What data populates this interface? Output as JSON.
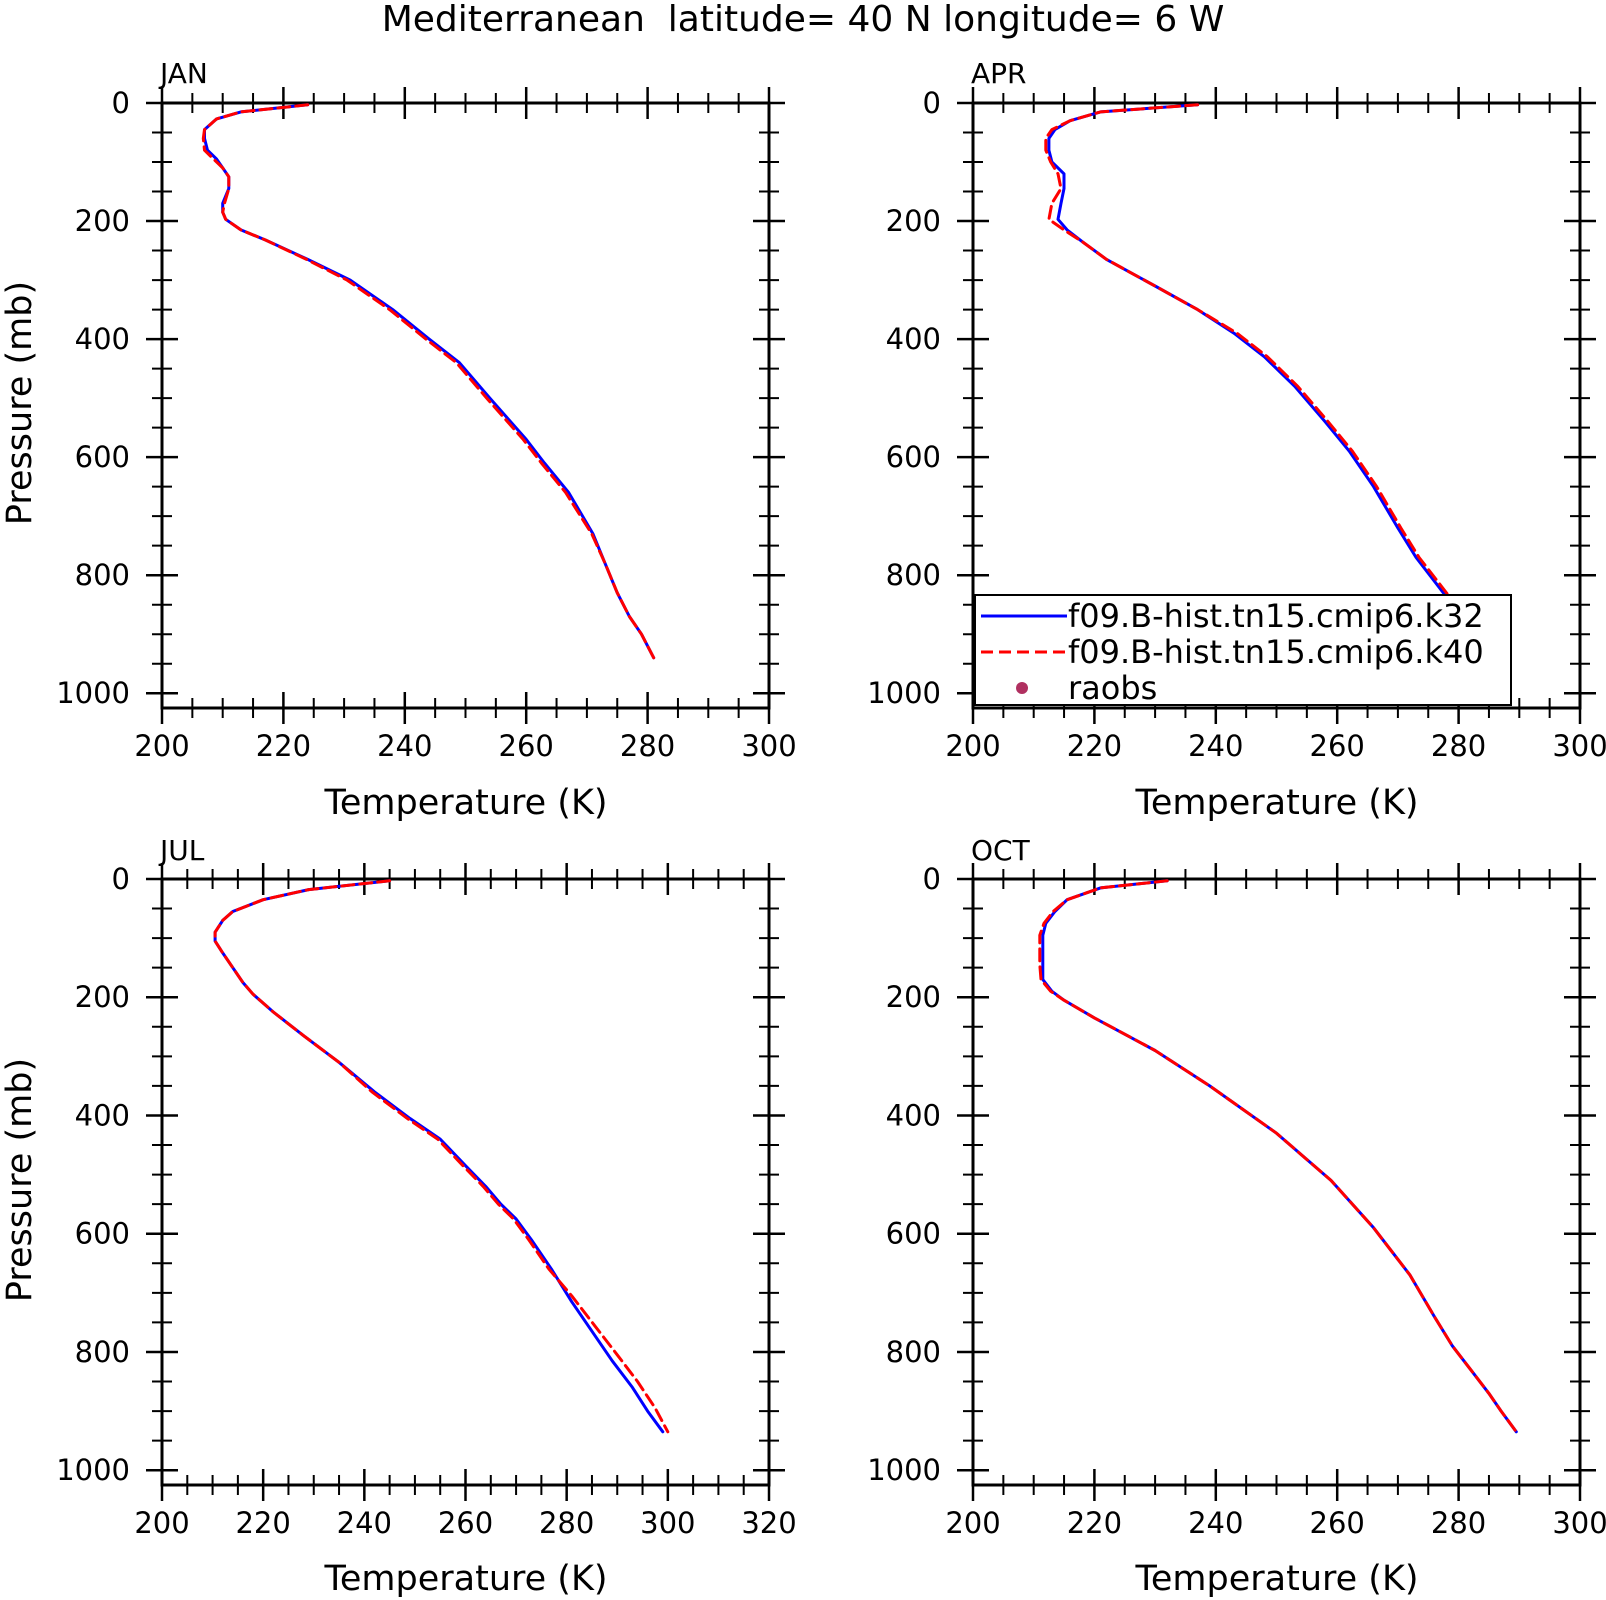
{
  "figure": {
    "title": "Mediterranean  latitude= 40 N longitude= 6 W"
  },
  "legend": {
    "entries": [
      {
        "label": "f09.B-hist.tn15.cmip6.k32",
        "color": "#0000ff",
        "style": "solid"
      },
      {
        "label": "f09.B-hist.tn15.cmip6.k40",
        "color": "#ff0000",
        "style": "dashed"
      },
      {
        "label": "raobs",
        "color": "#b03060",
        "style": "marker"
      }
    ]
  },
  "chart_data": [
    {
      "type": "line",
      "title": "JAN",
      "xlabel": "Temperature (K)",
      "ylabel": "Pressure (mb)",
      "xlim": [
        200,
        300
      ],
      "ylim": [
        1025,
        0
      ],
      "y_inverted": true,
      "xticks": [
        "200",
        "220",
        "240",
        "260",
        "280",
        "300"
      ],
      "yticks": [
        "0",
        "200",
        "400",
        "600",
        "800",
        "1000"
      ],
      "series": [
        {
          "name": "f09.B-hist.tn15.cmip6.k32",
          "color": "#0000ff",
          "dash": false,
          "points": [
            [
              224,
              3
            ],
            [
              213,
              15
            ],
            [
              209,
              27
            ],
            [
              207,
              45
            ],
            [
              207,
              60
            ],
            [
              207.5,
              80
            ],
            [
              209,
              95
            ],
            [
              210,
              110
            ],
            [
              211,
              125
            ],
            [
              211,
              145
            ],
            [
              210,
              170
            ],
            [
              210,
              185
            ],
            [
              210.5,
              197
            ],
            [
              213,
              215
            ],
            [
              217,
              232
            ],
            [
              224,
              265
            ],
            [
              231,
              300
            ],
            [
              238,
              350
            ],
            [
              244,
              400
            ],
            [
              249,
              440
            ],
            [
              254,
              500
            ],
            [
              260,
              570
            ],
            [
              263,
              610
            ],
            [
              267,
              660
            ],
            [
              271,
              730
            ],
            [
              273,
              780
            ],
            [
              275,
              830
            ],
            [
              277,
              870
            ],
            [
              279,
              900
            ],
            [
              281,
              940
            ]
          ]
        },
        {
          "name": "f09.B-hist.tn15.cmip6.k40",
          "color": "#ff0000",
          "dash": true,
          "points": [
            [
              224,
              3
            ],
            [
              213,
              15
            ],
            [
              209,
              27
            ],
            [
              207,
              45
            ],
            [
              206.8,
              60
            ],
            [
              207,
              80
            ],
            [
              208.5,
              95
            ],
            [
              210,
              110
            ],
            [
              211,
              125
            ],
            [
              211,
              145
            ],
            [
              210.3,
              170
            ],
            [
              210,
              185
            ],
            [
              210.5,
              197
            ],
            [
              213,
              215
            ],
            [
              217,
              232
            ],
            [
              223.8,
              265
            ],
            [
              230.5,
              300
            ],
            [
              237.5,
              350
            ],
            [
              243.5,
              400
            ],
            [
              248.5,
              440
            ],
            [
              253.5,
              500
            ],
            [
              259.5,
              570
            ],
            [
              262.5,
              610
            ],
            [
              266.5,
              660
            ],
            [
              270.8,
              730
            ],
            [
              273,
              780
            ],
            [
              275,
              830
            ],
            [
              277,
              870
            ],
            [
              279,
              900
            ],
            [
              281,
              940
            ]
          ]
        }
      ]
    },
    {
      "type": "line",
      "title": "APR",
      "xlabel": "Temperature (K)",
      "ylabel": "",
      "xlim": [
        200,
        300
      ],
      "ylim": [
        1025,
        0
      ],
      "y_inverted": true,
      "xticks": [
        "200",
        "220",
        "240",
        "260",
        "280",
        "300"
      ],
      "yticks": [
        "0",
        "200",
        "400",
        "600",
        "800",
        "1000"
      ],
      "series": [
        {
          "name": "f09.B-hist.tn15.cmip6.k32",
          "color": "#0000ff",
          "dash": false,
          "points": [
            [
              237,
              3
            ],
            [
              221,
              15
            ],
            [
              216,
              30
            ],
            [
              213.5,
              45
            ],
            [
              212.5,
              60
            ],
            [
              212.5,
              80
            ],
            [
              213,
              100
            ],
            [
              215,
              120
            ],
            [
              215,
              145
            ],
            [
              214.5,
              170
            ],
            [
              214,
              197
            ],
            [
              215.5,
              215
            ],
            [
              218,
              235
            ],
            [
              222,
              265
            ],
            [
              230,
              310
            ],
            [
              237,
              350
            ],
            [
              243,
              390
            ],
            [
              248,
              430
            ],
            [
              253,
              480
            ],
            [
              258,
              540
            ],
            [
              262,
              590
            ],
            [
              266,
              650
            ],
            [
              270,
              720
            ],
            [
              273,
              770
            ],
            [
              276,
              810
            ],
            [
              279,
              850
            ],
            [
              282,
              890
            ],
            [
              284,
              910
            ],
            [
              286,
              935
            ]
          ]
        },
        {
          "name": "f09.B-hist.tn15.cmip6.k40",
          "color": "#ff0000",
          "dash": true,
          "points": [
            [
              237,
              3
            ],
            [
              221,
              15
            ],
            [
              216,
              30
            ],
            [
              213,
              45
            ],
            [
              212,
              60
            ],
            [
              212,
              80
            ],
            [
              212.8,
              100
            ],
            [
              214,
              120
            ],
            [
              214.5,
              145
            ],
            [
              213,
              170
            ],
            [
              212.5,
              197
            ],
            [
              215,
              215
            ],
            [
              218,
              235
            ],
            [
              222,
              265
            ],
            [
              230,
              310
            ],
            [
              237,
              350
            ],
            [
              243.5,
              390
            ],
            [
              248.5,
              430
            ],
            [
              253.5,
              480
            ],
            [
              258.5,
              540
            ],
            [
              262.5,
              590
            ],
            [
              266.5,
              650
            ],
            [
              270.5,
              720
            ],
            [
              273.5,
              770
            ],
            [
              276.5,
              810
            ],
            [
              279.5,
              850
            ],
            [
              282,
              890
            ],
            [
              284.5,
              910
            ],
            [
              286.5,
              935
            ]
          ]
        }
      ]
    },
    {
      "type": "line",
      "title": "JUL",
      "xlabel": "Temperature (K)",
      "ylabel": "Pressure (mb)",
      "xlim": [
        200,
        320
      ],
      "ylim": [
        1025,
        0
      ],
      "y_inverted": true,
      "xticks": [
        "200",
        "220",
        "240",
        "260",
        "280",
        "300",
        "320"
      ],
      "yticks": [
        "0",
        "200",
        "400",
        "600",
        "800",
        "1000"
      ],
      "series": [
        {
          "name": "f09.B-hist.tn15.cmip6.k32",
          "color": "#0000ff",
          "dash": false,
          "points": [
            [
              245,
              3
            ],
            [
              229,
              18
            ],
            [
              220,
              35
            ],
            [
              214,
              55
            ],
            [
              212,
              70
            ],
            [
              210.5,
              90
            ],
            [
              210.5,
              105
            ],
            [
              212,
              125
            ],
            [
              214,
              150
            ],
            [
              216,
              175
            ],
            [
              218,
              195
            ],
            [
              222,
              225
            ],
            [
              228,
              265
            ],
            [
              235,
              310
            ],
            [
              242,
              360
            ],
            [
              249,
              405
            ],
            [
              255,
              440
            ],
            [
              260,
              485
            ],
            [
              264,
              520
            ],
            [
              267,
              550
            ],
            [
              270,
              575
            ],
            [
              273,
              610
            ],
            [
              277,
              660
            ],
            [
              281,
              715
            ],
            [
              285,
              765
            ],
            [
              289,
              815
            ],
            [
              293,
              860
            ],
            [
              296,
              900
            ],
            [
              299,
              935
            ]
          ]
        },
        {
          "name": "f09.B-hist.tn15.cmip6.k40",
          "color": "#ff0000",
          "dash": true,
          "points": [
            [
              245,
              3
            ],
            [
              229,
              18
            ],
            [
              220,
              35
            ],
            [
              214,
              55
            ],
            [
              212,
              70
            ],
            [
              210.5,
              90
            ],
            [
              210.5,
              105
            ],
            [
              212,
              125
            ],
            [
              214,
              150
            ],
            [
              216,
              175
            ],
            [
              218,
              195
            ],
            [
              222,
              225
            ],
            [
              228,
              265
            ],
            [
              235,
              310
            ],
            [
              241.5,
              360
            ],
            [
              248.5,
              405
            ],
            [
              254.5,
              440
            ],
            [
              259.5,
              485
            ],
            [
              263.5,
              520
            ],
            [
              266.5,
              550
            ],
            [
              269.5,
              575
            ],
            [
              272.5,
              610
            ],
            [
              276.5,
              660
            ],
            [
              281,
              705
            ],
            [
              285.5,
              755
            ],
            [
              290,
              805
            ],
            [
              294,
              850
            ],
            [
              297.5,
              895
            ],
            [
              300,
              935
            ]
          ]
        }
      ]
    },
    {
      "type": "line",
      "title": "OCT",
      "xlabel": "Temperature (K)",
      "ylabel": "",
      "xlim": [
        200,
        300
      ],
      "ylim": [
        1025,
        0
      ],
      "y_inverted": true,
      "xticks": [
        "200",
        "220",
        "240",
        "260",
        "280",
        "300"
      ],
      "yticks": [
        "0",
        "200",
        "400",
        "600",
        "800",
        "1000"
      ],
      "series": [
        {
          "name": "f09.B-hist.tn15.cmip6.k32",
          "color": "#0000ff",
          "dash": false,
          "points": [
            [
              232,
              3
            ],
            [
              221,
              15
            ],
            [
              215.5,
              35
            ],
            [
              213.5,
              55
            ],
            [
              212,
              75
            ],
            [
              211.5,
              95
            ],
            [
              211.5,
              120
            ],
            [
              211.5,
              145
            ],
            [
              211.5,
              170
            ],
            [
              213,
              190
            ],
            [
              215,
              205
            ],
            [
              220,
              235
            ],
            [
              230,
              290
            ],
            [
              239,
              350
            ],
            [
              250,
              430
            ],
            [
              259,
              510
            ],
            [
              266,
              590
            ],
            [
              272,
              670
            ],
            [
              276,
              740
            ],
            [
              279,
              790
            ],
            [
              282,
              830
            ],
            [
              285,
              870
            ],
            [
              287,
              900
            ],
            [
              289.5,
              935
            ]
          ]
        },
        {
          "name": "f09.B-hist.tn15.cmip6.k40",
          "color": "#ff0000",
          "dash": true,
          "points": [
            [
              232,
              3
            ],
            [
              221,
              15
            ],
            [
              215.5,
              35
            ],
            [
              213.2,
              55
            ],
            [
              211.7,
              75
            ],
            [
              211,
              95
            ],
            [
              211,
              120
            ],
            [
              211,
              145
            ],
            [
              211.2,
              170
            ],
            [
              212.8,
              190
            ],
            [
              215,
              205
            ],
            [
              220,
              235
            ],
            [
              230,
              290
            ],
            [
              239,
              350
            ],
            [
              250,
              430
            ],
            [
              259,
              510
            ],
            [
              266,
              590
            ],
            [
              272,
              670
            ],
            [
              276,
              740
            ],
            [
              279,
              790
            ],
            [
              282,
              830
            ],
            [
              285,
              870
            ],
            [
              287,
              900
            ],
            [
              289.5,
              935
            ]
          ]
        }
      ]
    }
  ]
}
